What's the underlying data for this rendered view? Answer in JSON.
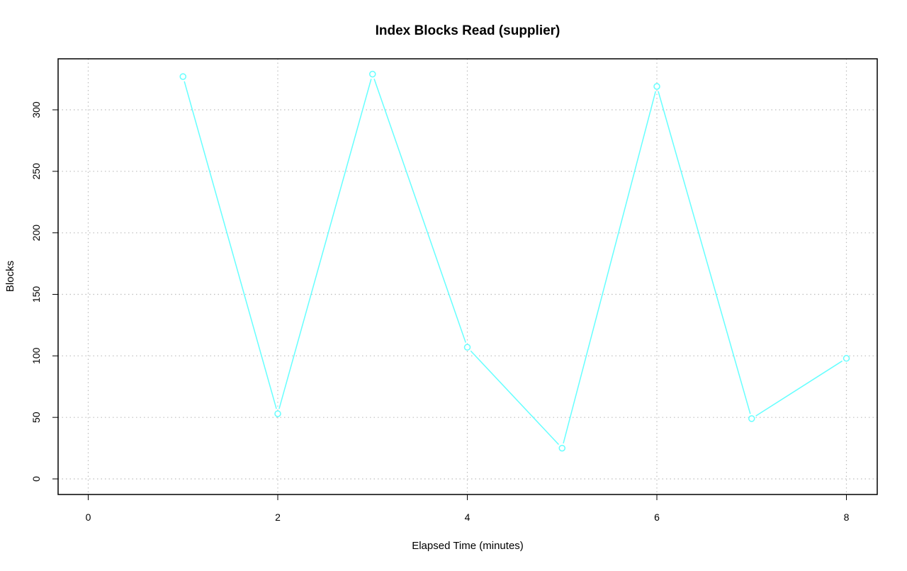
{
  "chart_data": {
    "type": "line",
    "title": "Index Blocks Read (supplier)",
    "xlabel": "Elapsed Time (minutes)",
    "ylabel": "Blocks",
    "xlim": [
      0,
      8
    ],
    "ylim": [
      0,
      330
    ],
    "x_ticks": [
      0,
      2,
      4,
      6,
      8
    ],
    "y_ticks": [
      0,
      50,
      100,
      150,
      200,
      250,
      300
    ],
    "grid": true,
    "series": [
      {
        "color": "#66ffff",
        "x": [
          1,
          2,
          3,
          4,
          5,
          6,
          7,
          8
        ],
        "values": [
          327,
          53,
          329,
          107,
          25,
          319,
          49,
          98
        ]
      }
    ]
  }
}
